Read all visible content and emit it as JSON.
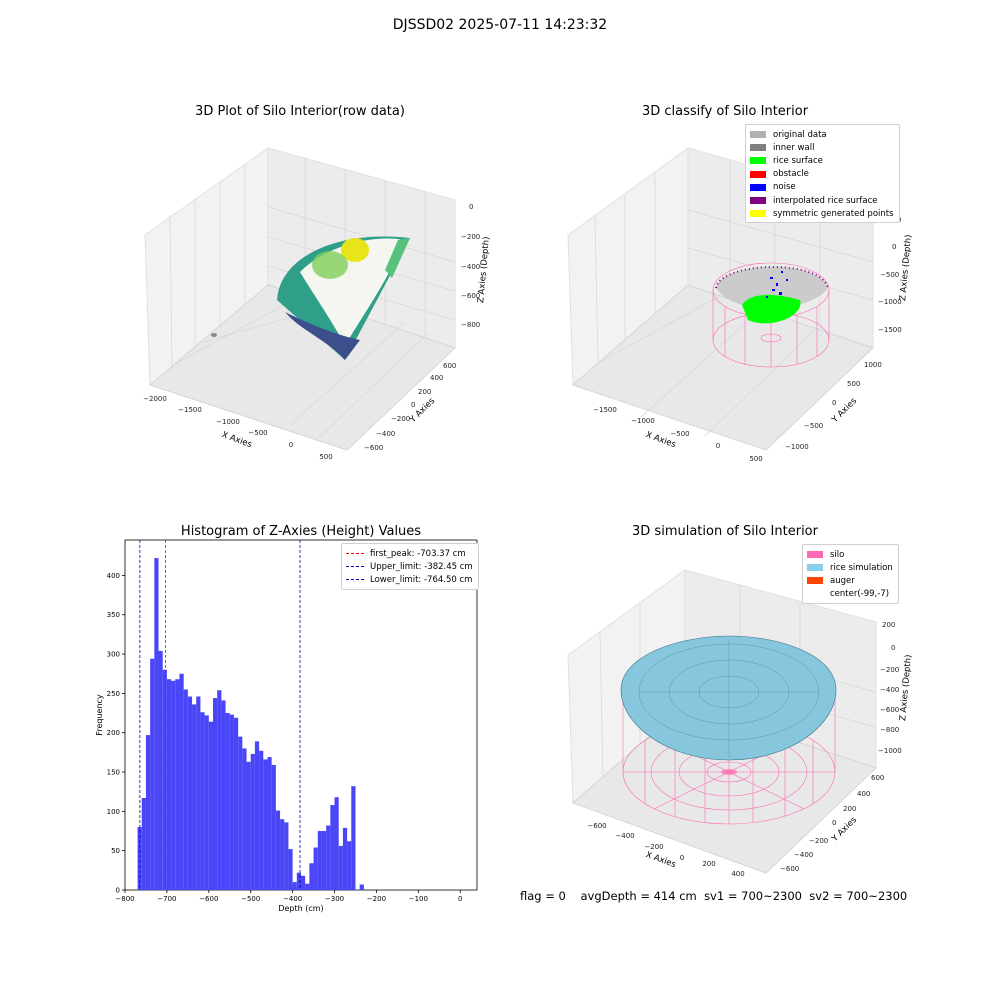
{
  "figure_title": "DJSSD02 2025-07-11 14:23:32",
  "footer": {
    "flag": "flag = 0",
    "avg_depth": "avgDepth = 414 cm",
    "sv1": "sv1 = 700~2300",
    "sv2": "sv2 = 700~2300"
  },
  "colors": {
    "hist_bar": "#4a46f8",
    "first_peak": "#ff0000",
    "limits": "#0000aa",
    "pane": "#f2f2f2",
    "silo": "#ff69b4",
    "rice_sim": "#87c7de",
    "auger": "#ff4500",
    "rice_surface": "#00ff00",
    "noise": "#0000ff",
    "inner_wall": "#808080"
  },
  "panels": {
    "raw": {
      "title": "3D Plot of Silo Interior(row data)",
      "x_label": "X Axies",
      "y_label": "Y Axies",
      "z_label": "Z Axies (Depth)",
      "x_ticks": [
        "−2000",
        "−1500",
        "−1000",
        "−500",
        "0",
        "500"
      ],
      "y_ticks": [
        "−600",
        "−400",
        "−200",
        "0",
        "200",
        "400",
        "600"
      ],
      "z_ticks": [
        "0",
        "−200",
        "−400",
        "−600",
        "−800"
      ]
    },
    "classify": {
      "title": "3D classify of Silo Interior",
      "x_label": "X Axies",
      "y_label": "Y Axies",
      "z_label": "Z Axies (Depth)",
      "x_ticks": [
        "−1500",
        "−1000",
        "−500",
        "0",
        "500"
      ],
      "y_ticks": [
        "−1000",
        "−500",
        "0",
        "500",
        "1000"
      ],
      "z_ticks": [
        "500",
        "0",
        "−500",
        "−1000",
        "−1500"
      ],
      "legend": [
        {
          "label": "original data",
          "color": "#b0b0b0"
        },
        {
          "label": "inner wall",
          "color": "#808080"
        },
        {
          "label": "rice surface",
          "color": "#00ff00"
        },
        {
          "label": "obstacle",
          "color": "#ff0000"
        },
        {
          "label": "noise",
          "color": "#0000ff"
        },
        {
          "label": "interpolated rice surface",
          "color": "#800080"
        },
        {
          "label": "symmetric generated points",
          "color": "#ffff00"
        }
      ]
    },
    "simulation": {
      "title": "3D simulation of Silo Interior",
      "x_label": "X Axies",
      "y_label": "Y Axies",
      "z_label": "Z Axies (Depth)",
      "x_ticks": [
        "−600",
        "−400",
        "−200",
        "0",
        "200",
        "400"
      ],
      "y_ticks": [
        "−600",
        "−400",
        "−200",
        "0",
        "200",
        "400",
        "600"
      ],
      "z_ticks": [
        "200",
        "0",
        "−200",
        "−400",
        "−600",
        "−800",
        "−1000"
      ],
      "legend": [
        {
          "label": "silo",
          "color": "#ff69b4"
        },
        {
          "label": "rice simulation",
          "color": "#87ceeb"
        },
        {
          "label": "auger",
          "color": "#ff4500"
        },
        {
          "label": "center(-99,-7)",
          "color": ""
        }
      ]
    }
  },
  "chart_data": [
    {
      "type": "bar",
      "title": "Histogram of Z-Axies (Height) Values",
      "xlabel": "Depth (cm)",
      "ylabel": "Frequency",
      "xlim": [
        -800,
        40
      ],
      "ylim": [
        0,
        445
      ],
      "bin_width": 10,
      "x_ticks": [
        -800,
        -700,
        -600,
        -500,
        -400,
        -300,
        -200,
        -100,
        0
      ],
      "x_tick_labels": [
        "−800",
        "−700",
        "−600",
        "−500",
        "−400",
        "−300",
        "−200",
        "−100",
        "0"
      ],
      "y_ticks": [
        0,
        50,
        100,
        150,
        200,
        250,
        300,
        350,
        400
      ],
      "bin_starts": [
        -770,
        -760,
        -750,
        -740,
        -730,
        -720,
        -710,
        -700,
        -690,
        -680,
        -670,
        -660,
        -650,
        -640,
        -630,
        -620,
        -610,
        -600,
        -590,
        -580,
        -570,
        -560,
        -550,
        -540,
        -530,
        -520,
        -510,
        -500,
        -490,
        -480,
        -470,
        -460,
        -450,
        -440,
        -430,
        -420,
        -410,
        -400,
        -390,
        -380,
        -370,
        -360,
        -350,
        -340,
        -330,
        -320,
        -310,
        -300,
        -290,
        -280,
        -270,
        -260,
        -250,
        -240,
        -230,
        -220,
        -210,
        -200,
        -190,
        -180,
        -170,
        -160,
        -150,
        -140,
        -130,
        -120,
        -110,
        -100,
        -90,
        -80,
        -70,
        -60,
        -50,
        -40,
        -30,
        -20,
        -10,
        0
      ],
      "values": [
        80,
        117,
        197,
        294,
        422,
        304,
        280,
        268,
        266,
        268,
        275,
        255,
        246,
        236,
        246,
        226,
        222,
        214,
        244,
        254,
        241,
        225,
        223,
        219,
        195,
        180,
        163,
        173,
        189,
        177,
        166,
        169,
        159,
        101,
        90,
        86,
        52,
        10,
        22,
        18,
        8,
        34,
        54,
        75,
        75,
        82,
        108,
        118,
        56,
        79,
        62,
        132,
        0,
        7,
        0,
        0,
        0,
        0,
        0,
        0,
        0,
        0,
        0,
        0,
        0,
        0,
        0,
        0,
        0,
        0,
        0,
        0,
        0,
        0,
        0,
        0,
        0,
        0
      ],
      "lines": [
        {
          "label": "first_peak: -703.37 cm",
          "x": -703.37,
          "color": "#ff0000"
        },
        {
          "label": "Upper_limit: -382.45 cm",
          "x": -382.45,
          "color": "#0000aa"
        },
        {
          "label": "Lower_limit: -764.50 cm",
          "x": -764.5,
          "color": "#0000aa"
        }
      ],
      "legend_position": "top-right"
    }
  ]
}
